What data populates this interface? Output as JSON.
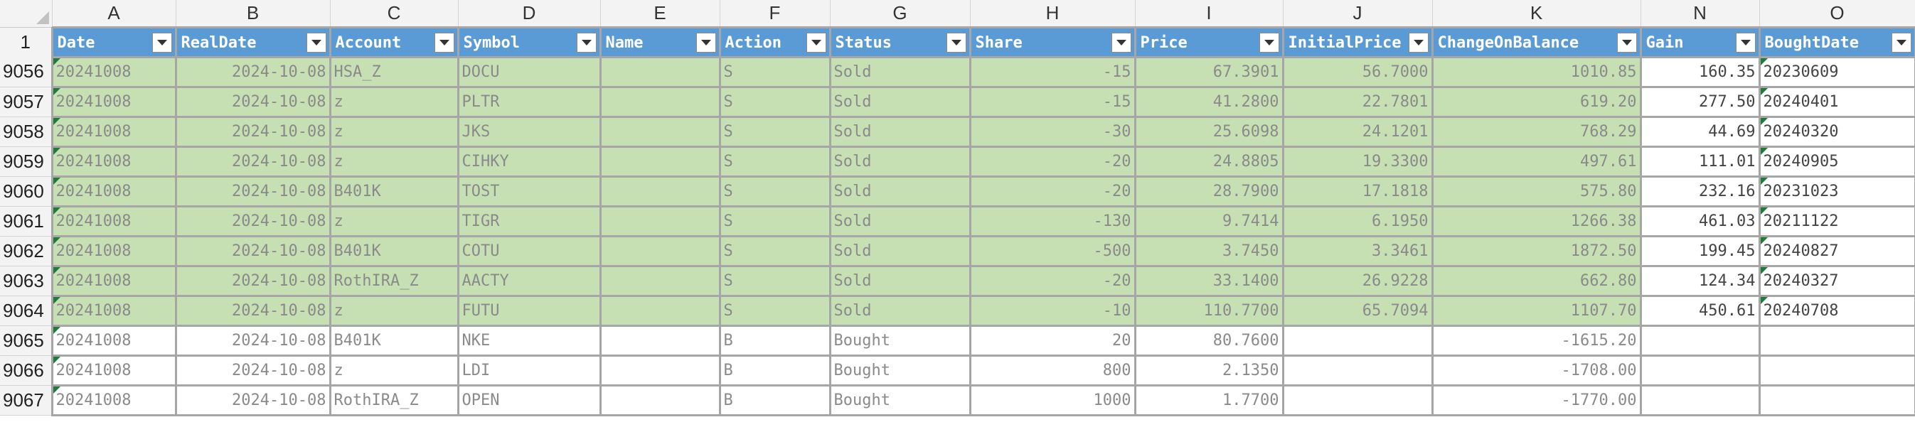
{
  "columns": [
    "A",
    "B",
    "C",
    "D",
    "E",
    "F",
    "G",
    "H",
    "I",
    "J",
    "K",
    "N",
    "O"
  ],
  "header_row_number": "1",
  "headers": [
    "Date",
    "RealDate",
    "Account",
    "Symbol",
    "Name",
    "Action",
    "Status",
    "Share",
    "Price",
    "InitialPrice",
    "ChangeOnBalance",
    "Gain",
    "BoughtDate"
  ],
  "rows": [
    {
      "num": "9056",
      "date": "20241008",
      "realdate": "2024-10-08",
      "account": "HSA_Z",
      "symbol": "DOCU",
      "name": "",
      "action": "S",
      "status": "Sold",
      "share": "-15",
      "price": "67.3901",
      "initial": "56.7000",
      "change": "1010.85",
      "gain": "160.35",
      "bought": "20230609",
      "type": "sold"
    },
    {
      "num": "9057",
      "date": "20241008",
      "realdate": "2024-10-08",
      "account": "z",
      "symbol": "PLTR",
      "name": "",
      "action": "S",
      "status": "Sold",
      "share": "-15",
      "price": "41.2800",
      "initial": "22.7801",
      "change": "619.20",
      "gain": "277.50",
      "bought": "20240401",
      "type": "sold"
    },
    {
      "num": "9058",
      "date": "20241008",
      "realdate": "2024-10-08",
      "account": "z",
      "symbol": "JKS",
      "name": "",
      "action": "S",
      "status": "Sold",
      "share": "-30",
      "price": "25.6098",
      "initial": "24.1201",
      "change": "768.29",
      "gain": "44.69",
      "bought": "20240320",
      "type": "sold"
    },
    {
      "num": "9059",
      "date": "20241008",
      "realdate": "2024-10-08",
      "account": "z",
      "symbol": "CIHKY",
      "name": "",
      "action": "S",
      "status": "Sold",
      "share": "-20",
      "price": "24.8805",
      "initial": "19.3300",
      "change": "497.61",
      "gain": "111.01",
      "bought": "20240905",
      "type": "sold"
    },
    {
      "num": "9060",
      "date": "20241008",
      "realdate": "2024-10-08",
      "account": "B401K",
      "symbol": "TOST",
      "name": "",
      "action": "S",
      "status": "Sold",
      "share": "-20",
      "price": "28.7900",
      "initial": "17.1818",
      "change": "575.80",
      "gain": "232.16",
      "bought": "20231023",
      "type": "sold"
    },
    {
      "num": "9061",
      "date": "20241008",
      "realdate": "2024-10-08",
      "account": "z",
      "symbol": "TIGR",
      "name": "",
      "action": "S",
      "status": "Sold",
      "share": "-130",
      "price": "9.7414",
      "initial": "6.1950",
      "change": "1266.38",
      "gain": "461.03",
      "bought": "20211122",
      "type": "sold"
    },
    {
      "num": "9062",
      "date": "20241008",
      "realdate": "2024-10-08",
      "account": "B401K",
      "symbol": "COTU",
      "name": "",
      "action": "S",
      "status": "Sold",
      "share": "-500",
      "price": "3.7450",
      "initial": "3.3461",
      "change": "1872.50",
      "gain": "199.45",
      "bought": "20240827",
      "type": "sold"
    },
    {
      "num": "9063",
      "date": "20241008",
      "realdate": "2024-10-08",
      "account": "RothIRA_Z",
      "symbol": "AACTY",
      "name": "",
      "action": "S",
      "status": "Sold",
      "share": "-20",
      "price": "33.1400",
      "initial": "26.9228",
      "change": "662.80",
      "gain": "124.34",
      "bought": "20240327",
      "type": "sold"
    },
    {
      "num": "9064",
      "date": "20241008",
      "realdate": "2024-10-08",
      "account": "z",
      "symbol": "FUTU",
      "name": "",
      "action": "S",
      "status": "Sold",
      "share": "-10",
      "price": "110.7700",
      "initial": "65.7094",
      "change": "1107.70",
      "gain": "450.61",
      "bought": "20240708",
      "type": "sold"
    },
    {
      "num": "9065",
      "date": "20241008",
      "realdate": "2024-10-08",
      "account": "B401K",
      "symbol": "NKE",
      "name": "",
      "action": "B",
      "status": "Bought",
      "share": "20",
      "price": "80.7600",
      "initial": "",
      "change": "-1615.20",
      "gain": "",
      "bought": "",
      "type": "bought"
    },
    {
      "num": "9066",
      "date": "20241008",
      "realdate": "2024-10-08",
      "account": "z",
      "symbol": "LDI",
      "name": "",
      "action": "B",
      "status": "Bought",
      "share": "800",
      "price": "2.1350",
      "initial": "",
      "change": "-1708.00",
      "gain": "",
      "bought": "",
      "type": "bought"
    },
    {
      "num": "9067",
      "date": "20241008",
      "realdate": "2024-10-08",
      "account": "RothIRA_Z",
      "symbol": "OPEN",
      "name": "",
      "action": "B",
      "status": "Bought",
      "share": "1000",
      "price": "1.7700",
      "initial": "",
      "change": "-1770.00",
      "gain": "",
      "bought": "",
      "type": "bought"
    }
  ],
  "colors": {
    "header_fill": "#5b9bd5",
    "sold_fill": "#c6e0b4",
    "bought_fill": "#ffffff",
    "marker": "#1e7b3c"
  },
  "icons": {
    "filter": "filter-dropdown-icon",
    "sort": "sort-ascending-icon"
  }
}
